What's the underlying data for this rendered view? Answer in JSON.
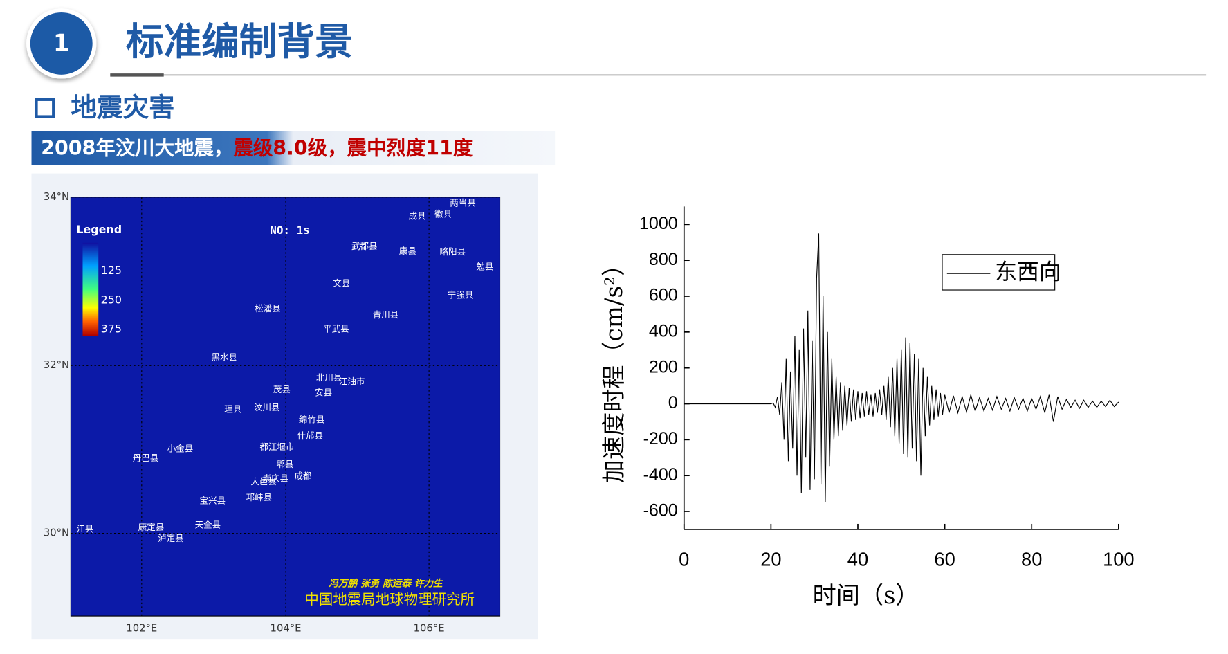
{
  "header": {
    "number": "1",
    "title": "标准编制背景"
  },
  "section": {
    "title": "地震灾害"
  },
  "banner": {
    "text": "2008年汶川大地震，",
    "highlight": "震级8.0级，震中烈度11度"
  },
  "map": {
    "lat_labels": [
      "34°N",
      "32°N",
      "30°N"
    ],
    "lon_labels": [
      "102°E",
      "104°E",
      "106°E"
    ],
    "legend_title": "Legend",
    "legend_labels": [
      "125",
      "250",
      "375"
    ],
    "frame_label": "NO: 1s",
    "places": [
      "两当县",
      "成县",
      "徽县",
      "武都县",
      "康县",
      "略阳县",
      "勉县",
      "文县",
      "宁强县",
      "松潘县",
      "青川县",
      "平武县",
      "黑水县",
      "北川县",
      "江油市",
      "茂县",
      "安县",
      "理县",
      "汶川县",
      "绵竹县",
      "什邡县",
      "小金县",
      "都江堰市",
      "丹巴县",
      "郫县",
      "大邑县",
      "崇庆县",
      "成都",
      "宝兴县",
      "邛崃县",
      "康定县",
      "天全县",
      "泸定县",
      "江县"
    ],
    "authors": "冯万鹏 张勇 陈运泰 许力生",
    "institute": "中国地震局地球物理研究所"
  },
  "chart_data": {
    "type": "line",
    "x_label": "时间（s）",
    "y_label": "加速度时程（cm/s²）",
    "xlim": [
      0,
      100
    ],
    "ylim": [
      -700,
      1100
    ],
    "xticks": [
      0,
      20,
      40,
      60,
      80,
      100
    ],
    "yticks": [
      -600,
      -400,
      -200,
      0,
      200,
      400,
      600,
      800,
      1000
    ],
    "legend": "upper right",
    "x": [
      0,
      20,
      20.5,
      21,
      21.5,
      22,
      22.5,
      23,
      23.5,
      24,
      24.5,
      25,
      25.5,
      26,
      26.5,
      27,
      27.5,
      28,
      28.5,
      29,
      29.5,
      30,
      30.5,
      31,
      31.5,
      32,
      32.5,
      33,
      33.5,
      34,
      34.5,
      35,
      35.5,
      36,
      36.5,
      37,
      37.5,
      38,
      38.5,
      39,
      39.5,
      40,
      40.5,
      41,
      41.5,
      42,
      42.5,
      43,
      43.5,
      44,
      44.5,
      45,
      45.5,
      46,
      46.5,
      47,
      47.5,
      48,
      48.5,
      49,
      49.5,
      50,
      50.5,
      51,
      51.5,
      52,
      52.5,
      53,
      53.5,
      54,
      54.5,
      55,
      55.5,
      56,
      56.5,
      57,
      57.5,
      58,
      58.5,
      59,
      59.5,
      60,
      61,
      62,
      63,
      64,
      65,
      66,
      67,
      68,
      69,
      70,
      71,
      72,
      73,
      74,
      75,
      76,
      77,
      78,
      79,
      80,
      81,
      82,
      83,
      84,
      85,
      86,
      87,
      88,
      89,
      90,
      91,
      92,
      93,
      94,
      95,
      96,
      97,
      98,
      99,
      100
    ],
    "series": [
      {
        "name": "东西向",
        "color": "#000000",
        "values": [
          0,
          0,
          5,
          -20,
          40,
          -60,
          120,
          -200,
          250,
          -320,
          180,
          -250,
          380,
          -400,
          300,
          -500,
          420,
          -300,
          520,
          -480,
          350,
          -420,
          700,
          950,
          -450,
          600,
          -550,
          400,
          -350,
          250,
          -200,
          150,
          -180,
          120,
          -150,
          100,
          -120,
          90,
          -100,
          80,
          -90,
          70,
          -80,
          60,
          -70,
          70,
          -60,
          50,
          -70,
          60,
          -50,
          80,
          -60,
          100,
          -90,
          150,
          -130,
          200,
          -180,
          250,
          -220,
          300,
          -280,
          370,
          -300,
          340,
          -250,
          280,
          -320,
          250,
          -400,
          200,
          -180,
          150,
          -120,
          100,
          -90,
          80,
          -70,
          60,
          -60,
          50,
          -50,
          45,
          -50,
          40,
          -45,
          50,
          -40,
          35,
          -40,
          30,
          -35,
          40,
          -30,
          30,
          -40,
          35,
          -30,
          30,
          -40,
          30,
          -30,
          40,
          -50,
          50,
          -100,
          40,
          -30,
          25,
          -20,
          20,
          -25,
          20,
          -20,
          15,
          -20,
          15,
          -15,
          20,
          -15,
          10
        ]
      }
    ]
  }
}
